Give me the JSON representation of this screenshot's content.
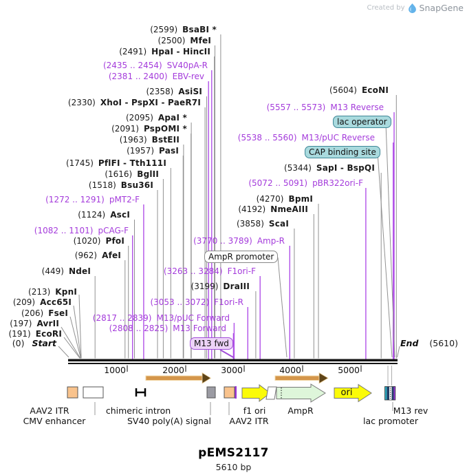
{
  "watermark": {
    "created_by": "Created by",
    "brand": "SnapGene"
  },
  "title": {
    "name": "pEMS2117",
    "length": "5610 bp"
  },
  "map": {
    "start": {
      "pos": "(0)",
      "label": "Start"
    },
    "end": {
      "label": "End",
      "pos": "(5610)"
    },
    "ticks": [
      "1000",
      "2000",
      "3000",
      "4000",
      "5000"
    ],
    "sites": [
      {
        "pos": "(2599)",
        "name": "BsaBI *",
        "kind": "enzyme"
      },
      {
        "pos": "(2500)",
        "name": "MfeI",
        "kind": "enzyme"
      },
      {
        "pos": "(2491)",
        "name": "HpaI - HincII",
        "kind": "enzyme"
      },
      {
        "pos": "(2435 .. 2454)",
        "name": "SV40pA-R",
        "kind": "primer"
      },
      {
        "pos": "(2381 .. 2400)",
        "name": "EBV-rev",
        "kind": "primer"
      },
      {
        "pos": "(2358)",
        "name": "AsiSI",
        "kind": "enzyme"
      },
      {
        "pos": "(2330)",
        "name": "XhoI - PspXI - PaeR7I",
        "kind": "enzyme"
      },
      {
        "pos": "(2095)",
        "name": "ApaI *",
        "kind": "enzyme"
      },
      {
        "pos": "(2091)",
        "name": "PspOMI *",
        "kind": "enzyme"
      },
      {
        "pos": "(1963)",
        "name": "BstEII",
        "kind": "enzyme"
      },
      {
        "pos": "(1957)",
        "name": "PasI",
        "kind": "enzyme"
      },
      {
        "pos": "(1745)",
        "name": "PflFI - Tth111I",
        "kind": "enzyme"
      },
      {
        "pos": "(1616)",
        "name": "BglII",
        "kind": "enzyme"
      },
      {
        "pos": "(1518)",
        "name": "Bsu36I",
        "kind": "enzyme"
      },
      {
        "pos": "(1272 .. 1291)",
        "name": "pMT2-F",
        "kind": "primer"
      },
      {
        "pos": "(1124)",
        "name": "AscI",
        "kind": "enzyme"
      },
      {
        "pos": "(1082 .. 1101)",
        "name": "pCAG-F",
        "kind": "primer"
      },
      {
        "pos": "(1020)",
        "name": "PfoI",
        "kind": "enzyme"
      },
      {
        "pos": "(962)",
        "name": "AfeI",
        "kind": "enzyme"
      },
      {
        "pos": "(449)",
        "name": "NdeI",
        "kind": "enzyme"
      },
      {
        "pos": "(213)",
        "name": "KpnI",
        "kind": "enzyme"
      },
      {
        "pos": "(209)",
        "name": "Acc65I",
        "kind": "enzyme"
      },
      {
        "pos": "(206)",
        "name": "FseI",
        "kind": "enzyme"
      },
      {
        "pos": "(197)",
        "name": "AvrII",
        "kind": "enzyme"
      },
      {
        "pos": "(191)",
        "name": "EcoRI",
        "kind": "enzyme"
      },
      {
        "pos": "(5604)",
        "name": "EcoNI",
        "kind": "enzyme"
      },
      {
        "pos": "(5557 .. 5573)",
        "name": "M13 Reverse",
        "kind": "primer"
      },
      {
        "pos": "(5538 .. 5560)",
        "name": "M13/pUC Reverse",
        "kind": "primer"
      },
      {
        "pos": "(5344)",
        "name": "SapI - BspQI",
        "kind": "enzyme"
      },
      {
        "pos": "(5072 .. 5091)",
        "name": "pBR322ori-F",
        "kind": "primer"
      },
      {
        "pos": "(4270)",
        "name": "BpmI",
        "kind": "enzyme"
      },
      {
        "pos": "(4192)",
        "name": "NmeAIII",
        "kind": "enzyme"
      },
      {
        "pos": "(3858)",
        "name": "ScaI",
        "kind": "enzyme"
      },
      {
        "pos": "(3770 .. 3789)",
        "name": "Amp-R",
        "kind": "primer"
      },
      {
        "pos": "(3263 .. 3284)",
        "name": "F1ori-F",
        "kind": "primer"
      },
      {
        "pos": "(3199)",
        "name": "DraIII",
        "kind": "enzyme"
      },
      {
        "pos": "(3053 .. 3072)",
        "name": "F1ori-R",
        "kind": "primer"
      },
      {
        "pos": "(2817 .. 2839)",
        "name": "M13/pUC Forward",
        "kind": "primer"
      },
      {
        "pos": "(2808 .. 2825)",
        "name": "M13 Forward",
        "kind": "primer"
      }
    ],
    "boxed_labels": {
      "lac_operator": "lac operator",
      "cap_binding_site": "CAP binding site",
      "ampr_promoter": "AmpR promoter",
      "m13_fwd": "M13 fwd"
    },
    "features": {
      "aav2_itr_1": "AAV2 ITR",
      "cmv_enhancer": "CMV enhancer",
      "chimeric_intron": "chimeric intron",
      "sv40_polya": "SV40 poly(A) signal",
      "aav2_itr_2": "AAV2 ITR",
      "f1_ori": "f1 ori",
      "ampr": "AmpR",
      "ori": "ori",
      "m13_rev": "M13 rev",
      "lac_promoter": "lac promoter"
    }
  },
  "colors": {
    "primer_text": "#a43bdb",
    "primer_line": "#b050e8",
    "enzyme_line": "#909090",
    "teal_label": "#a9dade",
    "lavender_label": "#edd3f8",
    "itr_orange": "#f9c38d",
    "arrow_yellow": "#fbfb08",
    "ampr_green": "#def6da",
    "polya_gray": "#9b9ba3",
    "orf_tan": "#d4964b"
  }
}
